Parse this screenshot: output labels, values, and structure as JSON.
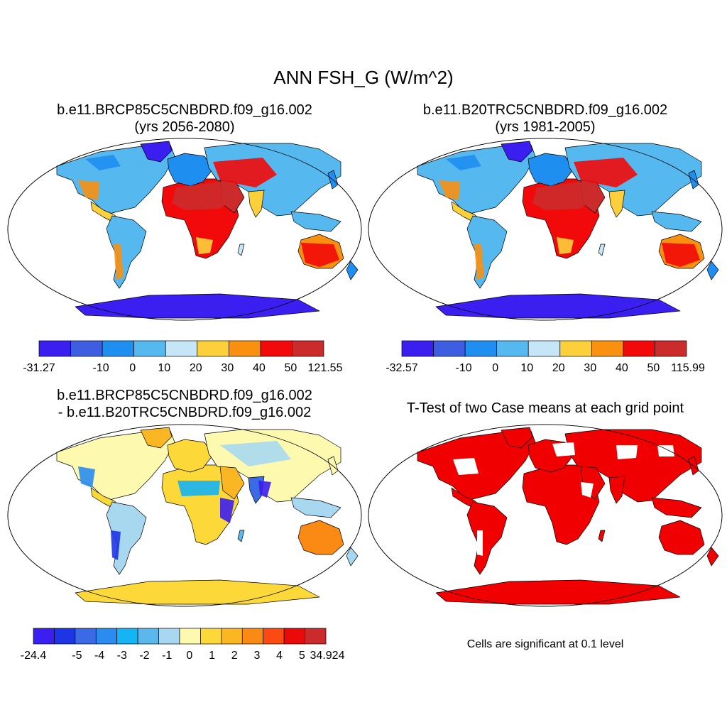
{
  "title": "ANN FSH_G (W/m^2)",
  "palette": {
    "a": [
      "#3b1ef0",
      "#3d5ee0",
      "#1e8ef0",
      "#55b8ee",
      "#c6e6f8",
      "#fbd03a",
      "#f99010",
      "#f20a0a",
      "#cc2b2b"
    ],
    "b": [
      "#3b1ef0",
      "#1c36e6",
      "#3b6ae6",
      "#2a8cf0",
      "#15b4f4",
      "#5ab8ec",
      "#a8d8f0",
      "#fdfab0",
      "#fcd838",
      "#fbb624",
      "#fa8a14",
      "#fb4a12",
      "#ea0a0a",
      "#cc2b2b"
    ],
    "significant": "#f00000",
    "ocean": "#ffffff",
    "outline": "#000000"
  },
  "panels": [
    {
      "title_line1": "b.e11.BRCP85C5CNBDRD.f09_g16.002",
      "title_line2": "(yrs 2056-2080)",
      "colorbar": {
        "labels": [
          "-31.27",
          "-10",
          "0",
          "10",
          "20",
          "30",
          "40",
          "50",
          "121.55"
        ]
      }
    },
    {
      "title_line1": "b.e11.B20TRC5CNBDRD.f09_g16.002",
      "title_line2": "(yrs 1981-2005)",
      "colorbar": {
        "labels": [
          "-32.57",
          "-10",
          "0",
          "10",
          "20",
          "30",
          "40",
          "50",
          "115.99"
        ]
      }
    },
    {
      "title_line1": "b.e11.BRCP85C5CNBDRD.f09_g16.002",
      "title_line2": "- b.e11.B20TRC5CNBDRD.f09_g16.002",
      "colorbar": {
        "labels": [
          "-24.4",
          "-5",
          "-4",
          "-3",
          "-2",
          "-1",
          "0",
          "1",
          "2",
          "3",
          "4",
          "5",
          "34.924"
        ]
      }
    },
    {
      "title_line1": "T-Test of two Case means at each grid point",
      "note": "Cells are significant at 0.1 level"
    }
  ]
}
